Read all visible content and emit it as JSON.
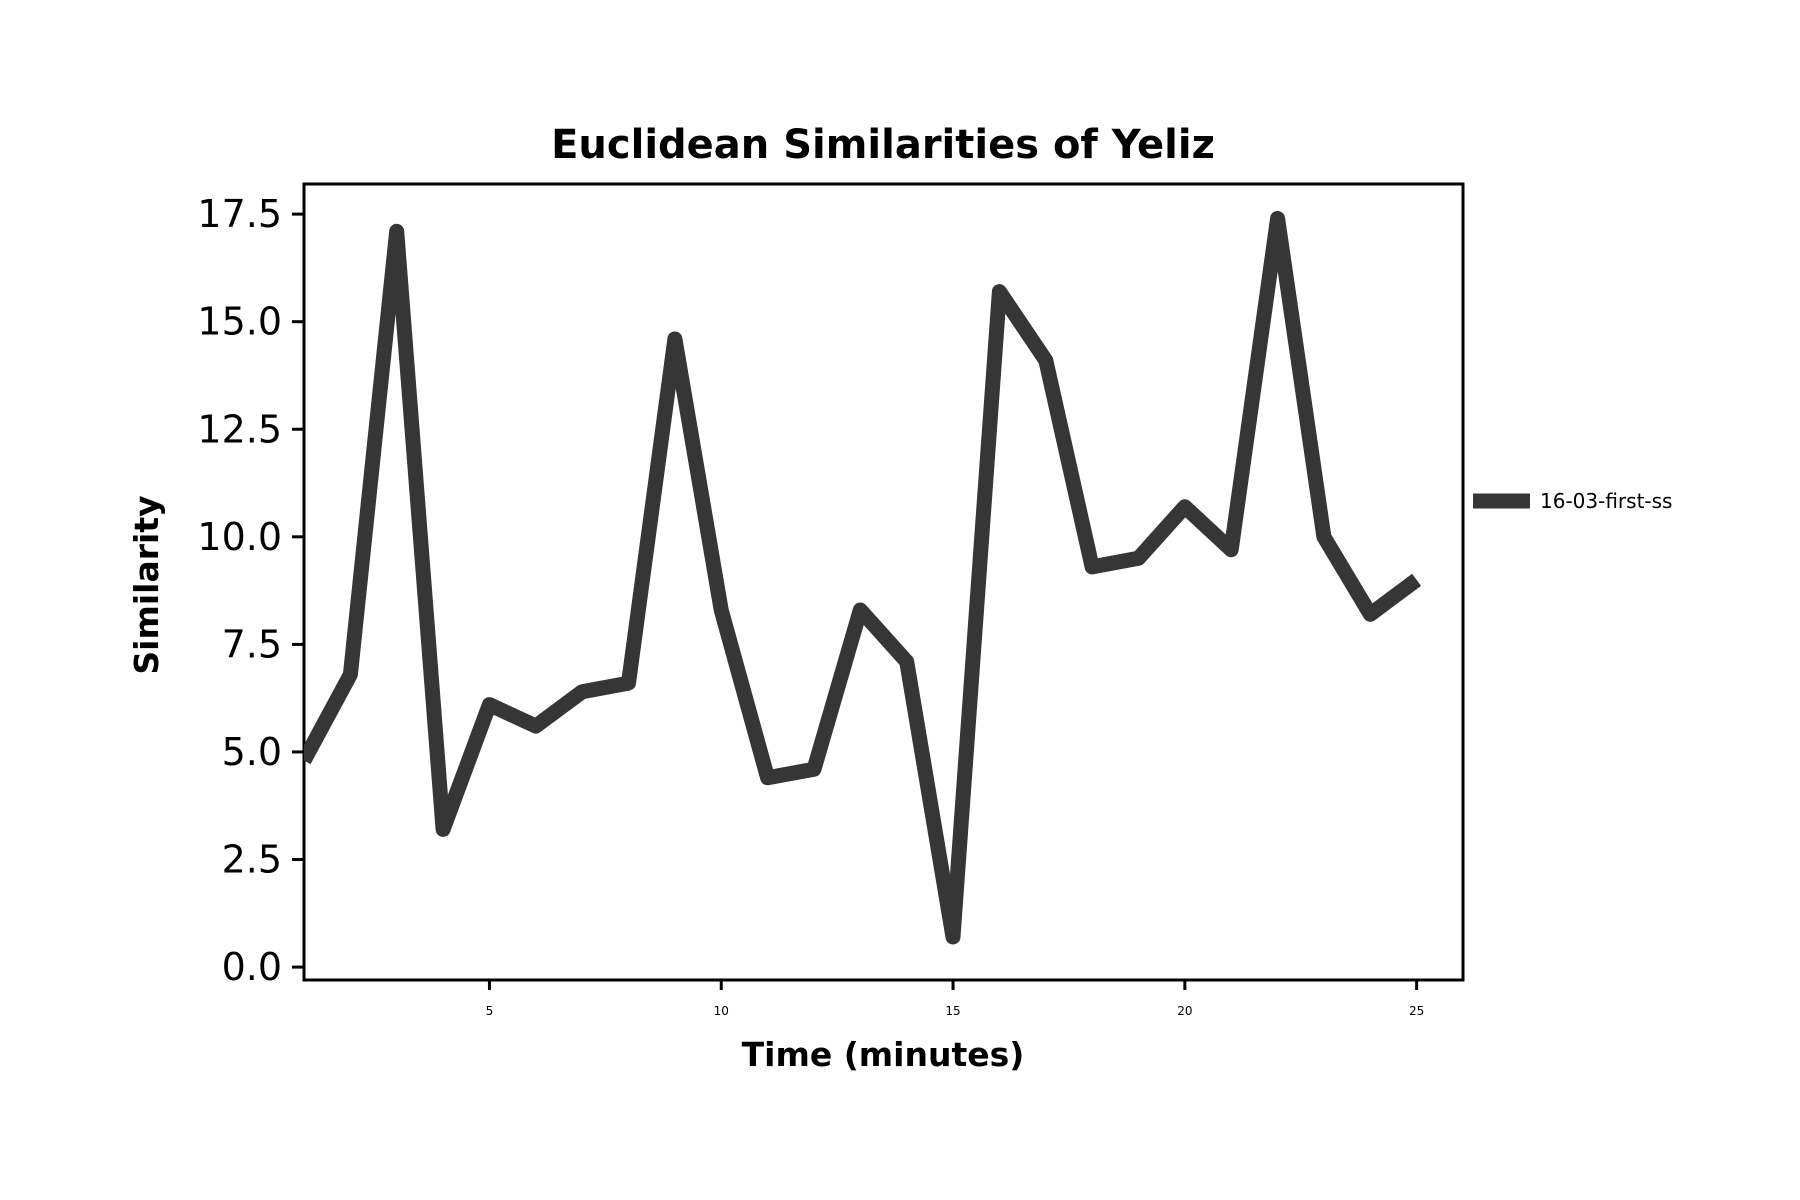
{
  "chart_data": {
    "type": "line",
    "title": "Euclidean Similarities of Yeliz",
    "xlabel": "Time (minutes)",
    "ylabel": "Similarity",
    "xlim": [
      1,
      26
    ],
    "ylim": [
      -0.3,
      18.2
    ],
    "x_ticks": [
      5,
      10,
      15,
      20,
      25
    ],
    "x_tick_labels": [
      "5",
      "10",
      "15",
      "20",
      "25"
    ],
    "y_ticks": [
      0.0,
      2.5,
      5.0,
      7.5,
      10.0,
      12.5,
      15.0,
      17.5
    ],
    "y_tick_labels": [
      "0.0",
      "2.5",
      "5.0",
      "7.5",
      "10.0",
      "12.5",
      "15.0",
      "17.5"
    ],
    "grid": false,
    "legend_position": "outside-right",
    "series": [
      {
        "name": "16-03-first-ss",
        "color": "#363636",
        "x": [
          1,
          2,
          3,
          4,
          5,
          6,
          7,
          8,
          9,
          10,
          11,
          12,
          13,
          14,
          15,
          16,
          17,
          18,
          19,
          20,
          21,
          22,
          23,
          24,
          25
        ],
        "y": [
          4.8,
          6.8,
          17.1,
          3.2,
          6.1,
          5.6,
          6.4,
          6.6,
          14.6,
          8.3,
          4.4,
          4.6,
          8.3,
          7.1,
          0.7,
          15.7,
          14.1,
          9.3,
          9.5,
          10.7,
          9.7,
          17.4,
          10.0,
          8.2,
          9.0
        ]
      }
    ]
  }
}
